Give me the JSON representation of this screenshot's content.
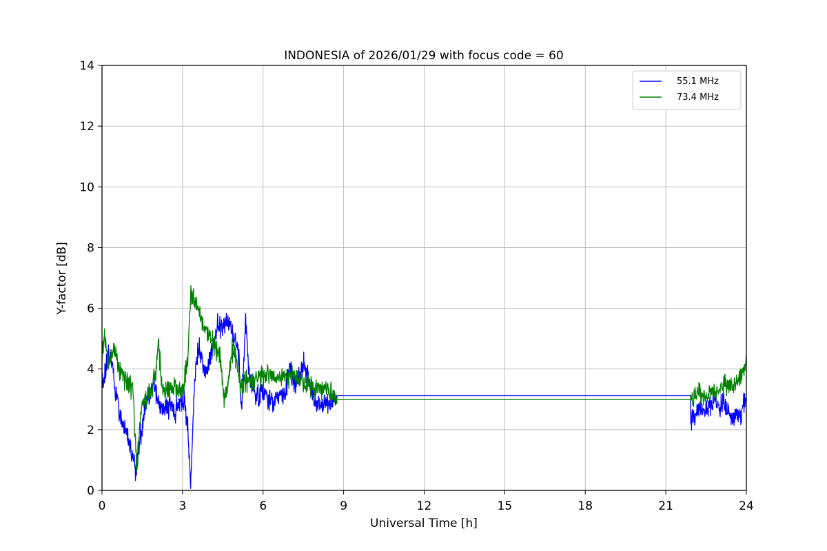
{
  "chart_data": {
    "type": "line",
    "title": "INDONESIA of 2026/01/29 with focus code = 60",
    "xlabel": "Universal Time [h]",
    "ylabel": "Y-factor [dB]",
    "xlim": [
      0,
      24
    ],
    "ylim": [
      0,
      14
    ],
    "xticks": [
      0,
      3,
      6,
      9,
      12,
      15,
      18,
      21,
      24
    ],
    "yticks": [
      0,
      2,
      4,
      6,
      8,
      10,
      12,
      14
    ],
    "grid": true,
    "grid_color": "#b0b0b0",
    "background": "#ffffff",
    "legend_position": "upper right",
    "series": [
      {
        "name": "55.1 MHz",
        "color": "#0000ff",
        "segments": [
          {
            "type": "noisy",
            "noise": 0.3,
            "step": 0.012,
            "anchors": [
              [
                0,
                3.4
              ],
              [
                0.15,
                4.0
              ],
              [
                0.3,
                4.6
              ],
              [
                0.5,
                3.2
              ],
              [
                0.7,
                2.4
              ],
              [
                0.9,
                2.0
              ],
              [
                1.1,
                1.2
              ],
              [
                1.25,
                0.7
              ],
              [
                1.4,
                1.5
              ],
              [
                1.55,
                2.4
              ],
              [
                1.7,
                3.2
              ],
              [
                1.9,
                3.5
              ],
              [
                2.1,
                3.0
              ],
              [
                2.3,
                2.6
              ],
              [
                2.5,
                2.8
              ],
              [
                2.7,
                2.6
              ],
              [
                2.9,
                2.9
              ],
              [
                3.05,
                3.1
              ],
              [
                3.2,
                2.0
              ],
              [
                3.3,
                0.2
              ],
              [
                3.45,
                3.8
              ],
              [
                3.6,
                4.7
              ],
              [
                3.75,
                4.2
              ],
              [
                3.9,
                3.9
              ],
              [
                4.1,
                4.6
              ],
              [
                4.3,
                5.5
              ],
              [
                4.5,
                5.4
              ],
              [
                4.7,
                5.6
              ],
              [
                4.9,
                5.0
              ],
              [
                5.1,
                4.4
              ],
              [
                5.2,
                2.6
              ],
              [
                5.35,
                5.5
              ],
              [
                5.5,
                3.8
              ],
              [
                5.65,
                3.2
              ],
              [
                5.8,
                3.1
              ],
              [
                6.0,
                3.3
              ],
              [
                6.2,
                3.0
              ],
              [
                6.4,
                2.9
              ],
              [
                6.6,
                3.2
              ],
              [
                6.8,
                3.1
              ],
              [
                7.0,
                4.1
              ],
              [
                7.15,
                3.5
              ],
              [
                7.3,
                3.6
              ],
              [
                7.5,
                4.2
              ],
              [
                7.7,
                3.6
              ],
              [
                7.9,
                2.9
              ],
              [
                8.1,
                2.8
              ],
              [
                8.3,
                2.9
              ],
              [
                8.5,
                2.8
              ],
              [
                8.7,
                3.0
              ],
              [
                8.75,
                3.1
              ]
            ]
          },
          {
            "type": "flat",
            "x0": 8.75,
            "x1": 21.92,
            "y": 3.12
          },
          {
            "type": "noisy",
            "noise": 0.3,
            "step": 0.012,
            "anchors": [
              [
                21.92,
                2.3
              ],
              [
                22.1,
                2.5
              ],
              [
                22.3,
                2.8
              ],
              [
                22.45,
                2.4
              ],
              [
                22.6,
                2.7
              ],
              [
                22.8,
                3.0
              ],
              [
                23.0,
                2.7
              ],
              [
                23.15,
                2.9
              ],
              [
                23.3,
                2.6
              ],
              [
                23.5,
                2.3
              ],
              [
                23.65,
                2.5
              ],
              [
                23.8,
                2.4
              ],
              [
                23.95,
                3.0
              ],
              [
                24,
                3.2
              ]
            ]
          }
        ]
      },
      {
        "name": "73.4 MHz",
        "color": "#008000",
        "segments": [
          {
            "type": "noisy",
            "noise": 0.28,
            "step": 0.012,
            "anchors": [
              [
                0,
                4.4
              ],
              [
                0.08,
                5.2
              ],
              [
                0.25,
                4.1
              ],
              [
                0.45,
                4.7
              ],
              [
                0.6,
                4.1
              ],
              [
                0.8,
                3.7
              ],
              [
                1.0,
                3.5
              ],
              [
                1.15,
                3.3
              ],
              [
                1.3,
                0.5
              ],
              [
                1.45,
                2.7
              ],
              [
                1.6,
                3.0
              ],
              [
                1.8,
                3.2
              ],
              [
                2.0,
                3.9
              ],
              [
                2.1,
                4.8
              ],
              [
                2.25,
                3.4
              ],
              [
                2.45,
                3.3
              ],
              [
                2.65,
                3.4
              ],
              [
                2.85,
                3.3
              ],
              [
                3.05,
                3.4
              ],
              [
                3.2,
                4.5
              ],
              [
                3.3,
                6.4
              ],
              [
                3.5,
                6.2
              ],
              [
                3.65,
                5.8
              ],
              [
                3.8,
                5.4
              ],
              [
                4.0,
                5.0
              ],
              [
                4.2,
                4.8
              ],
              [
                4.4,
                4.4
              ],
              [
                4.55,
                3.0
              ],
              [
                4.7,
                3.6
              ],
              [
                4.85,
                4.6
              ],
              [
                5.0,
                4.4
              ],
              [
                5.15,
                3.4
              ],
              [
                5.3,
                3.5
              ],
              [
                5.5,
                3.7
              ],
              [
                5.7,
                3.6
              ],
              [
                5.9,
                3.8
              ],
              [
                6.1,
                3.7
              ],
              [
                6.3,
                3.8
              ],
              [
                6.5,
                3.7
              ],
              [
                6.7,
                3.8
              ],
              [
                6.9,
                3.7
              ],
              [
                7.1,
                3.8
              ],
              [
                7.3,
                3.7
              ],
              [
                7.5,
                3.6
              ],
              [
                7.7,
                3.5
              ],
              [
                7.9,
                3.4
              ],
              [
                8.1,
                3.3
              ],
              [
                8.3,
                3.4
              ],
              [
                8.5,
                3.2
              ],
              [
                8.7,
                3.1
              ],
              [
                8.75,
                3.0
              ]
            ]
          },
          {
            "type": "flat",
            "x0": 8.75,
            "x1": 21.92,
            "y": 3.0
          },
          {
            "type": "noisy",
            "noise": 0.25,
            "step": 0.012,
            "anchors": [
              [
                21.92,
                2.9
              ],
              [
                22.1,
                3.1
              ],
              [
                22.3,
                3.2
              ],
              [
                22.5,
                3.1
              ],
              [
                22.7,
                3.3
              ],
              [
                22.9,
                3.2
              ],
              [
                23.1,
                3.4
              ],
              [
                23.3,
                3.5
              ],
              [
                23.5,
                3.4
              ],
              [
                23.7,
                3.7
              ],
              [
                23.9,
                3.9
              ],
              [
                24,
                4.3
              ]
            ]
          }
        ]
      }
    ]
  }
}
